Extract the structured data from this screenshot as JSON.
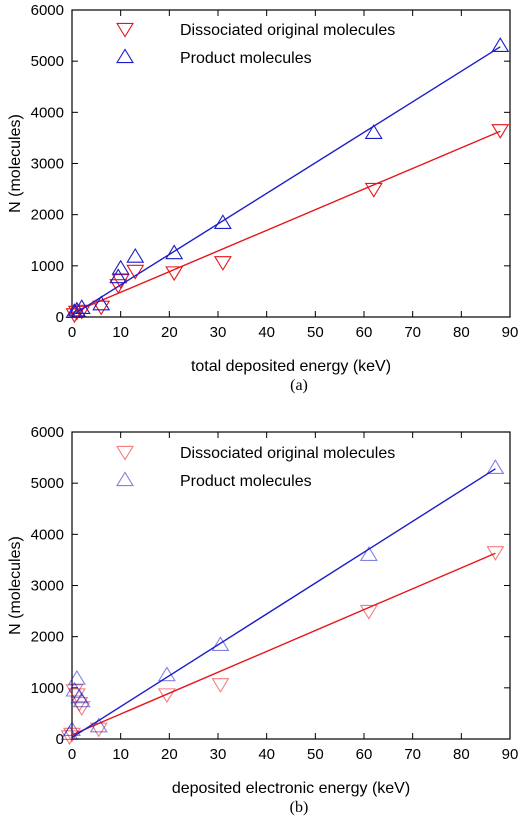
{
  "chart_data": [
    {
      "type": "scatter",
      "caption": "(a)",
      "xlabel": "total deposited energy (keV)",
      "ylabel": "N (molecules)",
      "xlim": [
        0,
        90
      ],
      "ylim": [
        0,
        6000
      ],
      "xticks": [
        "0",
        "10",
        "20",
        "30",
        "40",
        "50",
        "60",
        "70",
        "80",
        "90"
      ],
      "yticks": [
        "0",
        "1000",
        "2000",
        "3000",
        "4000",
        "5000",
        "6000"
      ],
      "legend_position": "top-left",
      "marker_style": "solid",
      "series": [
        {
          "name": "Dissociated original molecules",
          "color": "#e8141a",
          "marker": "triangle-down",
          "x": [
            0.5,
            1,
            2,
            6,
            9.5,
            10,
            13,
            21,
            31,
            62,
            88
          ],
          "y": [
            50,
            100,
            120,
            200,
            620,
            720,
            900,
            870,
            1070,
            2500,
            3650
          ],
          "fit": [
            [
              0,
              80
            ],
            [
              88,
              3630
            ]
          ]
        },
        {
          "name": "Product molecules",
          "color": "#1c1cc8",
          "marker": "triangle-up",
          "x": [
            0.5,
            1,
            2,
            6,
            9.5,
            10,
            13,
            21,
            31,
            62,
            88
          ],
          "y": [
            100,
            130,
            180,
            250,
            780,
            950,
            1180,
            1250,
            1840,
            3600,
            5300
          ],
          "fit": [
            [
              0,
              30
            ],
            [
              88,
              5280
            ]
          ]
        }
      ]
    },
    {
      "type": "scatter",
      "caption": "(b)",
      "xlabel": "deposited electronic energy (keV)",
      "ylabel": "N (molecules)",
      "xlim": [
        0,
        90
      ],
      "ylim": [
        0,
        6000
      ],
      "xticks": [
        "0",
        "10",
        "20",
        "30",
        "40",
        "50",
        "60",
        "70",
        "80",
        "90"
      ],
      "yticks": [
        "0",
        "1000",
        "2000",
        "3000",
        "4000",
        "5000",
        "6000"
      ],
      "legend_position": "top-left",
      "marker_style": "faded",
      "series": [
        {
          "name": "Dissociated original molecules",
          "color": "#e8141a",
          "marker": "triangle-down",
          "x": [
            -0.5,
            0,
            0.5,
            1,
            1.5,
            2,
            5.5,
            19.5,
            30.5,
            61,
            87
          ],
          "y": [
            50,
            100,
            950,
            870,
            700,
            620,
            200,
            870,
            1070,
            2500,
            3650
          ],
          "fit": [
            [
              0,
              80
            ],
            [
              87,
              3630
            ]
          ]
        },
        {
          "name": "Product molecules",
          "color": "#1c1cc8",
          "marker": "triangle-up",
          "x": [
            -0.5,
            0,
            0.5,
            1,
            1.5,
            2,
            5.5,
            19.5,
            30.5,
            61,
            87
          ],
          "y": [
            100,
            180,
            950,
            1180,
            820,
            740,
            250,
            1250,
            1840,
            3600,
            5300
          ],
          "fit": [
            [
              0,
              30
            ],
            [
              87,
              5280
            ]
          ]
        }
      ]
    }
  ]
}
